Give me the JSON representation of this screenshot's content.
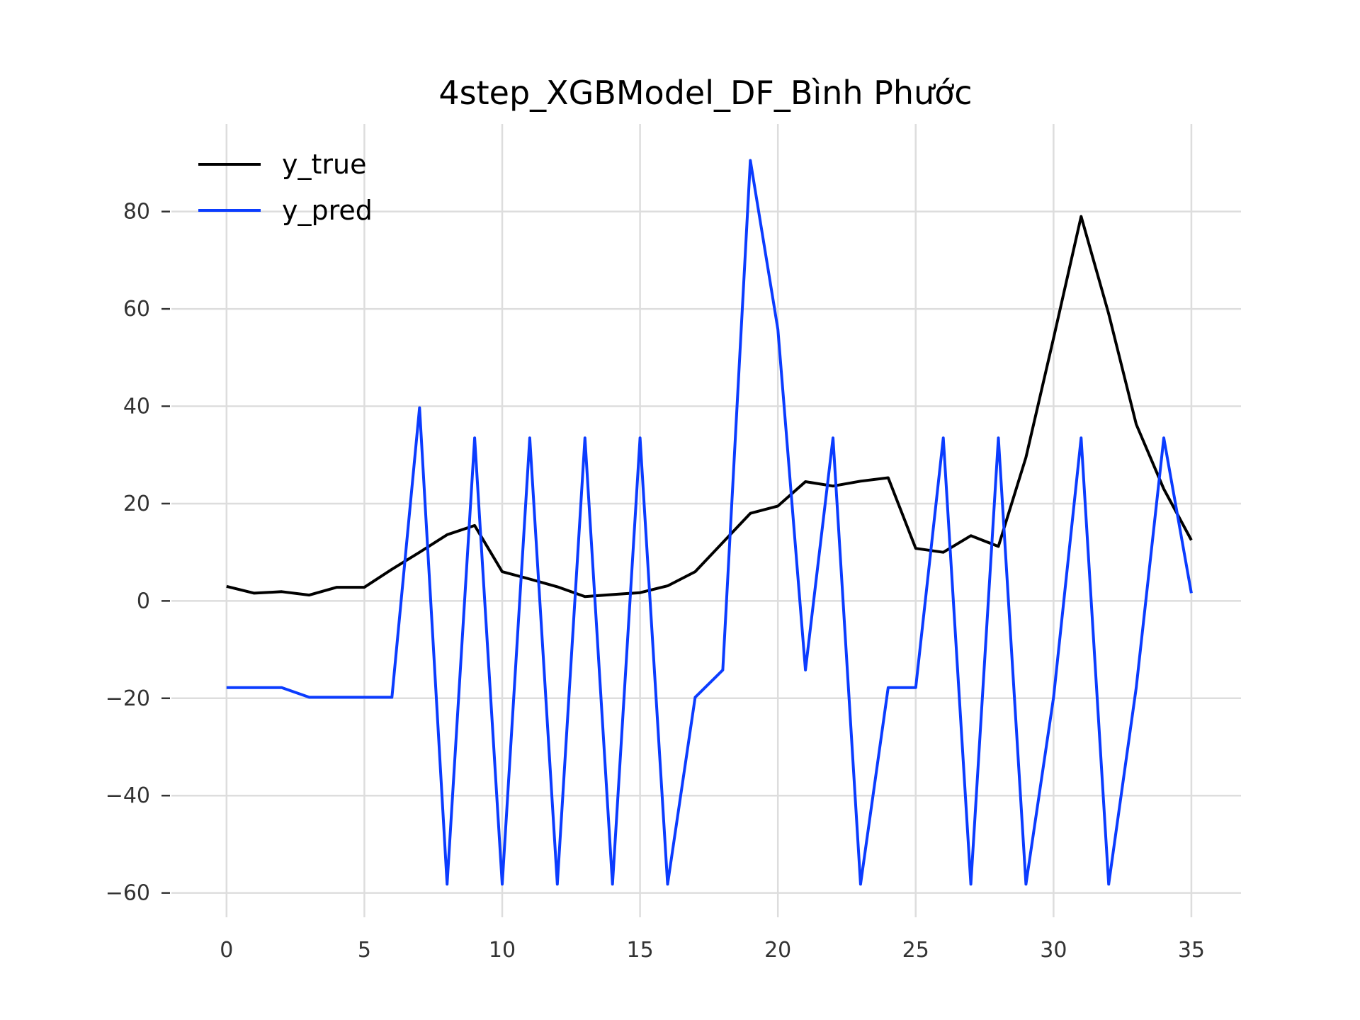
{
  "chart_data": {
    "type": "line",
    "title": "4step_XGBModel_DF_Bình Phước",
    "xlabel": "",
    "ylabel": "",
    "xlim": [
      -2,
      36.8
    ],
    "ylim": [
      -65,
      98
    ],
    "x_ticks": [
      0,
      5,
      10,
      15,
      20,
      25,
      30,
      35
    ],
    "y_ticks": [
      -60,
      -40,
      -20,
      0,
      20,
      40,
      60,
      80
    ],
    "x_tick_labels": [
      "0",
      "5",
      "10",
      "15",
      "20",
      "25",
      "30",
      "35"
    ],
    "y_tick_labels": [
      "−60",
      "−40",
      "−20",
      "0",
      "20",
      "40",
      "60",
      "80"
    ],
    "grid": true,
    "legend_position": "top-left",
    "x": [
      0,
      1,
      2,
      3,
      4,
      5,
      6,
      7,
      8,
      9,
      10,
      11,
      12,
      13,
      14,
      15,
      16,
      17,
      18,
      19,
      20,
      21,
      22,
      23,
      24,
      25,
      26,
      27,
      28,
      29,
      30,
      31,
      32,
      33,
      34,
      35
    ],
    "series": [
      {
        "name": "y_true",
        "color": "#000000",
        "values": [
          3.0,
          1.6,
          1.9,
          1.2,
          2.8,
          2.8,
          6.5,
          10.0,
          13.6,
          15.5,
          6.0,
          4.5,
          2.9,
          0.9,
          1.3,
          1.7,
          3.1,
          6.0,
          12.0,
          18.0,
          19.5,
          24.5,
          23.6,
          24.6,
          25.3,
          10.8,
          10.0,
          13.4,
          11.2,
          29.5,
          54.0,
          79.0,
          59.0,
          36.3,
          23.0,
          12.5
        ]
      },
      {
        "name": "y_pred",
        "color": "#0b3cff",
        "values": [
          -17.8,
          -17.8,
          -17.8,
          -19.8,
          -19.8,
          -19.8,
          -19.8,
          39.7,
          -58.2,
          33.5,
          -58.2,
          33.5,
          -58.2,
          33.5,
          -58.2,
          33.5,
          -58.2,
          -19.8,
          -14.2,
          90.5,
          55.8,
          -14.2,
          33.5,
          -58.2,
          -17.8,
          -17.8,
          33.5,
          -58.2,
          33.5,
          -58.2,
          -19.8,
          33.5,
          -58.2,
          -17.8,
          33.5,
          1.6
        ]
      }
    ]
  }
}
